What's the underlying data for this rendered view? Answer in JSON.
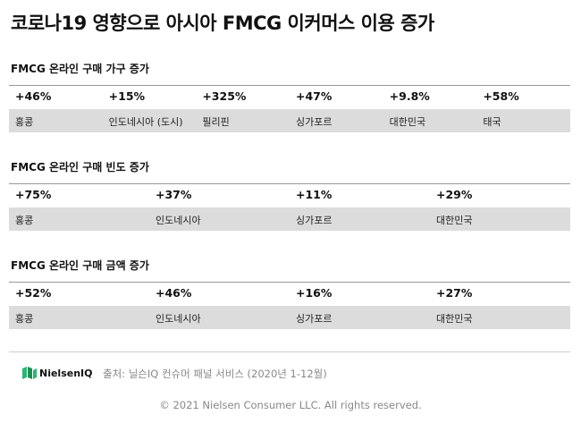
{
  "title": "코로나19 영향으로 아시아 FMCG 이커머스 이용 증가",
  "sections": [
    {
      "heading": "FMCG 온라인 구매 가구 증가",
      "items": [
        {
          "value": "+46%",
          "label": "홍콩"
        },
        {
          "value": "+15%",
          "label": "인도네시아 (도시)"
        },
        {
          "value": "+325%",
          "label": "필리핀"
        },
        {
          "value": "+47%",
          "label": "싱가포르"
        },
        {
          "value": "+9.8%",
          "label": "대한민국"
        },
        {
          "value": "+58%",
          "label": "태국"
        }
      ]
    },
    {
      "heading": "FMCG 온라인 구매 빈도 증가",
      "items": [
        {
          "value": "+75%",
          "label": "홍콩"
        },
        {
          "value": "+37%",
          "label": "인도네시아"
        },
        {
          "value": "+11%",
          "label": "싱가포르"
        },
        {
          "value": "+29%",
          "label": "대한민국"
        }
      ]
    },
    {
      "heading": "FMCG 온라인 구매 금액 증가",
      "items": [
        {
          "value": "+52%",
          "label": "홍콩"
        },
        {
          "value": "+46%",
          "label": "인도네시아"
        },
        {
          "value": "+16%",
          "label": "싱가포르"
        },
        {
          "value": "+27%",
          "label": "대한민국"
        }
      ]
    }
  ],
  "footer": {
    "logo": "NielsenIQ",
    "source": "출처: 닐슨IQ 컨슈머 패널 서비스 (2020년 1-12월)",
    "copyright": "© 2021 Nielsen Consumer LLC. All rights reserved."
  }
}
